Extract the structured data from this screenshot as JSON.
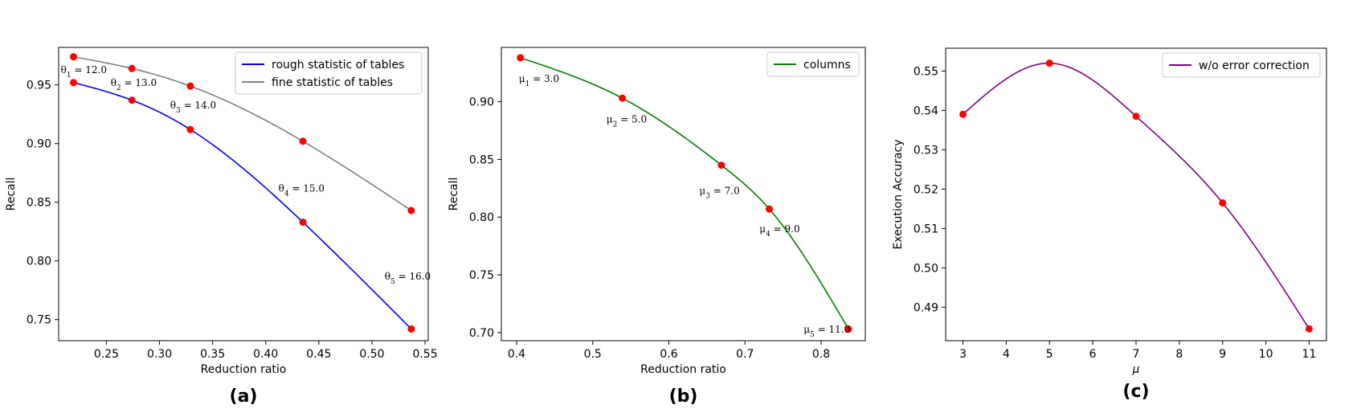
{
  "chart_data": [
    {
      "type": "line",
      "panel_label": "(a)",
      "xlabel": "Reduction ratio",
      "ylabel": "Recall",
      "xlim": [
        0.205,
        0.553
      ],
      "ylim": [
        0.732,
        0.982
      ],
      "xticks": [
        0.25,
        0.3,
        0.35,
        0.4,
        0.45,
        0.5,
        0.55
      ],
      "xtick_labels": [
        "0.25",
        "0.30",
        "0.35",
        "0.40",
        "0.45",
        "0.50",
        "0.55"
      ],
      "yticks": [
        0.75,
        0.8,
        0.85,
        0.9,
        0.95
      ],
      "ytick_labels": [
        "0.75",
        "0.80",
        "0.85",
        "0.90",
        "0.95"
      ],
      "legend_position": "top-right",
      "series": [
        {
          "name": "rough statistic of tables",
          "color": "#0000ff",
          "x": [
            0.219,
            0.274,
            0.329,
            0.435,
            0.537
          ],
          "y": [
            0.952,
            0.937,
            0.912,
            0.833,
            0.742
          ]
        },
        {
          "name": "fine statistic of tables",
          "color": "#808080",
          "x": [
            0.219,
            0.274,
            0.329,
            0.435,
            0.537
          ],
          "y": [
            0.974,
            0.964,
            0.949,
            0.902,
            0.843
          ]
        }
      ],
      "markers": {
        "color": "#ff0000"
      },
      "annotations": [
        {
          "text": "θ₁ = 12.0",
          "x": 0.207,
          "y": 0.96
        },
        {
          "text": "θ₂ = 13.0",
          "x": 0.254,
          "y": 0.949
        },
        {
          "text": "θ₃ = 14.0",
          "x": 0.31,
          "y": 0.93
        },
        {
          "text": "θ₄ = 15.0",
          "x": 0.412,
          "y": 0.859
        },
        {
          "text": "θ₅ = 16.0",
          "x": 0.512,
          "y": 0.784
        }
      ]
    },
    {
      "type": "line",
      "panel_label": "(b)",
      "xlabel": "Reduction ratio",
      "ylabel": "Recall",
      "xlim": [
        0.38,
        0.858
      ],
      "ylim": [
        0.693,
        0.947
      ],
      "xticks": [
        0.4,
        0.5,
        0.6,
        0.7,
        0.8
      ],
      "xtick_labels": [
        "0.4",
        "0.5",
        "0.6",
        "0.7",
        "0.8"
      ],
      "yticks": [
        0.7,
        0.75,
        0.8,
        0.85,
        0.9
      ],
      "ytick_labels": [
        "0.70",
        "0.75",
        "0.80",
        "0.85",
        "0.90"
      ],
      "legend_position": "top-right",
      "series": [
        {
          "name": "columns",
          "color": "#008000",
          "x": [
            0.405,
            0.539,
            0.669,
            0.732,
            0.836
          ],
          "y": [
            0.938,
            0.903,
            0.845,
            0.807,
            0.703
          ]
        }
      ],
      "markers": {
        "color": "#ff0000"
      },
      "annotations": [
        {
          "text": "μ₁ = 3.0",
          "x": 0.403,
          "y": 0.917
        },
        {
          "text": "μ₂ = 5.0",
          "x": 0.518,
          "y": 0.882
        },
        {
          "text": "μ₃ = 7.0",
          "x": 0.64,
          "y": 0.82
        },
        {
          "text": "μ₄ = 9.0",
          "x": 0.719,
          "y": 0.787
        },
        {
          "text": "μ₅ = 11.0",
          "x": 0.777,
          "y": 0.7
        }
      ]
    },
    {
      "type": "line",
      "panel_label": "(c)",
      "xlabel": "μ",
      "ylabel": "Execution Accuracy",
      "xlim": [
        2.6,
        11.4
      ],
      "ylim": [
        0.4815,
        0.5558
      ],
      "xticks": [
        3,
        4,
        5,
        6,
        7,
        8,
        9,
        10,
        11
      ],
      "xtick_labels": [
        "3",
        "4",
        "5",
        "6",
        "7",
        "8",
        "9",
        "10",
        "11"
      ],
      "yticks": [
        0.49,
        0.5,
        0.51,
        0.52,
        0.53,
        0.54,
        0.55
      ],
      "ytick_labels": [
        "0.49",
        "0.50",
        "0.51",
        "0.52",
        "0.53",
        "0.54",
        "0.55"
      ],
      "legend_position": "top-right",
      "series": [
        {
          "name": "w/o error correction",
          "color": "#800080",
          "x": [
            3,
            5,
            7,
            9,
            11
          ],
          "y": [
            0.539,
            0.552,
            0.5385,
            0.5165,
            0.4845
          ]
        }
      ],
      "markers": {
        "color": "#ff0000"
      },
      "annotations": []
    }
  ]
}
